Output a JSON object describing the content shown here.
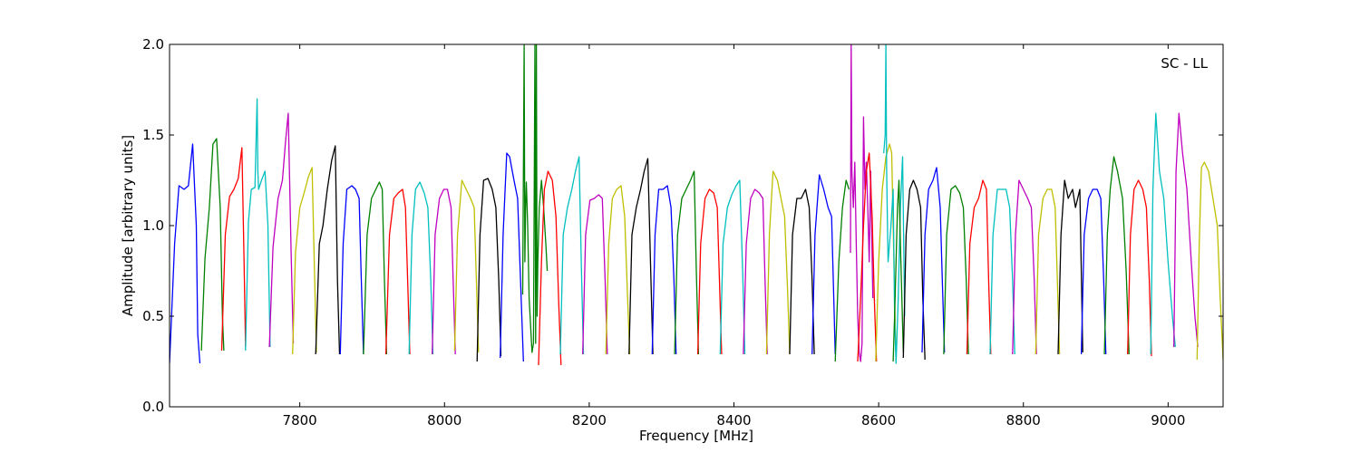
{
  "chart_data": {
    "type": "line",
    "title": "",
    "annotation": "SC - LL",
    "xlabel": "Frequency [MHz]",
    "ylabel": "Amplitude [arbitrary units]",
    "xlim": [
      7620,
      9076
    ],
    "ylim": [
      0.0,
      2.0
    ],
    "xticks": [
      7800,
      8000,
      8200,
      8400,
      8600,
      8800,
      9000
    ],
    "xtick_labels": [
      "7800",
      "8000",
      "8200",
      "8400",
      "8600",
      "8800",
      "9000"
    ],
    "yticks": [
      0.0,
      0.5,
      1.0,
      1.5,
      2.0
    ],
    "ytick_labels": [
      "0.0",
      "0.5",
      "1.0",
      "1.5",
      "2.0"
    ],
    "grid": false,
    "colors": [
      "#0000ff",
      "#008000",
      "#ff0000",
      "#00bfbf",
      "#bf00bf",
      "#bfbf00",
      "#000000"
    ],
    "series": [
      {
        "color": "#0000ff",
        "x": [
          7620,
          7627,
          7633,
          7640,
          7646,
          7652,
          7657,
          7659,
          7662
        ],
        "y": [
          0.24,
          0.9,
          1.22,
          1.2,
          1.22,
          1.45,
          1.0,
          0.4,
          0.24
        ]
      },
      {
        "color": "#008000",
        "x": [
          7664,
          7669,
          7675,
          7680,
          7685,
          7690,
          7693,
          7695
        ],
        "y": [
          0.31,
          0.82,
          1.1,
          1.45,
          1.48,
          1.1,
          0.5,
          0.31
        ]
      },
      {
        "color": "#ff0000",
        "x": [
          7692,
          7697,
          7703,
          7709,
          7715,
          7720,
          7723,
          7725
        ],
        "y": [
          0.31,
          0.95,
          1.16,
          1.2,
          1.26,
          1.43,
          0.8,
          0.33
        ]
      },
      {
        "color": "#00bfbf",
        "x": [
          7725,
          7729,
          7733,
          7738,
          7741,
          7742,
          7743,
          7747,
          7752,
          7756,
          7759
        ],
        "y": [
          0.31,
          1.02,
          1.2,
          1.21,
          1.7,
          1.3,
          1.2,
          1.25,
          1.3,
          1.0,
          0.33
        ]
      },
      {
        "color": "#bf00bf",
        "x": [
          7758,
          7763,
          7770,
          7776,
          7780,
          7784,
          7788,
          7791
        ],
        "y": [
          0.33,
          0.88,
          1.15,
          1.25,
          1.45,
          1.62,
          0.85,
          0.35
        ]
      },
      {
        "color": "#bfbf00",
        "x": [
          7790,
          7794,
          7800,
          7806,
          7812,
          7817,
          7820,
          7823
        ],
        "y": [
          0.29,
          0.85,
          1.1,
          1.18,
          1.27,
          1.32,
          0.8,
          0.3
        ]
      },
      {
        "color": "#000000",
        "x": [
          7822,
          7827,
          7832,
          7838,
          7844,
          7849,
          7852,
          7855
        ],
        "y": [
          0.29,
          0.9,
          1.0,
          1.2,
          1.36,
          1.44,
          0.7,
          0.29
        ]
      },
      {
        "color": "#0000ff",
        "x": [
          7856,
          7860,
          7865,
          7872,
          7877,
          7882,
          7885,
          7888
        ],
        "y": [
          0.29,
          0.9,
          1.2,
          1.22,
          1.2,
          1.15,
          0.7,
          0.29
        ]
      },
      {
        "color": "#008000",
        "x": [
          7888,
          7893,
          7899,
          7905,
          7910,
          7914,
          7917,
          7920
        ],
        "y": [
          0.29,
          0.95,
          1.15,
          1.2,
          1.24,
          1.2,
          0.7,
          0.29
        ]
      },
      {
        "color": "#ff0000",
        "x": [
          7919,
          7924,
          7930,
          7936,
          7942,
          7946,
          7949,
          7952
        ],
        "y": [
          0.29,
          0.95,
          1.15,
          1.18,
          1.2,
          1.1,
          0.7,
          0.29
        ]
      },
      {
        "color": "#00bfbf",
        "x": [
          7951,
          7955,
          7960,
          7966,
          7972,
          7977,
          7981,
          7984
        ],
        "y": [
          0.29,
          0.95,
          1.2,
          1.24,
          1.18,
          1.1,
          0.7,
          0.29
        ]
      },
      {
        "color": "#bf00bf",
        "x": [
          7983,
          7987,
          7993,
          7999,
          8004,
          8009,
          8012,
          8015
        ],
        "y": [
          0.29,
          0.95,
          1.15,
          1.2,
          1.2,
          1.1,
          0.7,
          0.29
        ]
      },
      {
        "color": "#bfbf00",
        "x": [
          8014,
          8018,
          8024,
          8030,
          8036,
          8041,
          8044,
          8047
        ],
        "y": [
          0.31,
          0.95,
          1.25,
          1.2,
          1.15,
          1.1,
          0.7,
          0.3
        ]
      },
      {
        "color": "#000000",
        "x": [
          8045,
          8049,
          8054,
          8060,
          8066,
          8071,
          8075,
          8078
        ],
        "y": [
          0.25,
          0.95,
          1.25,
          1.26,
          1.2,
          1.1,
          0.7,
          0.28
        ]
      },
      {
        "color": "#0000ff",
        "x": [
          8077,
          8081,
          8086,
          8090,
          8096,
          8101,
          8105,
          8109
        ],
        "y": [
          0.27,
          0.95,
          1.4,
          1.38,
          1.25,
          1.15,
          0.7,
          0.25
        ]
      },
      {
        "color": "#008000",
        "x": [
          8108,
          8110,
          8111,
          8112,
          8113,
          8115,
          8117,
          8119,
          8121,
          8123,
          8125,
          8126,
          8127,
          8128,
          8129,
          8131,
          8134,
          8137,
          8140,
          8142
        ],
        "y": [
          0.62,
          2.0,
          0.8,
          1.1,
          1.24,
          1.0,
          0.6,
          0.45,
          0.3,
          0.35,
          2.0,
          0.35,
          2.0,
          0.5,
          0.8,
          1.1,
          1.25,
          1.1,
          0.9,
          0.75
        ]
      },
      {
        "color": "#ff0000",
        "x": [
          8130,
          8134,
          8138,
          8143,
          8149,
          8154,
          8158,
          8161
        ],
        "y": [
          0.23,
          0.8,
          1.2,
          1.3,
          1.25,
          1.05,
          0.55,
          0.23
        ]
      },
      {
        "color": "#00bfbf",
        "x": [
          8160,
          8164,
          8170,
          8176,
          8181,
          8186,
          8189,
          8192
        ],
        "y": [
          0.29,
          0.95,
          1.1,
          1.2,
          1.3,
          1.38,
          0.8,
          0.29
        ]
      },
      {
        "color": "#bf00bf",
        "x": [
          8191,
          8195,
          8201,
          8207,
          8213,
          8218,
          8222,
          8225
        ],
        "y": [
          0.29,
          0.95,
          1.14,
          1.15,
          1.17,
          1.15,
          0.7,
          0.29
        ]
      },
      {
        "color": "#bfbf00",
        "x": [
          8223,
          8227,
          8232,
          8238,
          8244,
          8249,
          8253,
          8256
        ],
        "y": [
          0.29,
          0.9,
          1.15,
          1.2,
          1.22,
          1.05,
          0.6,
          0.29
        ]
      },
      {
        "color": "#000000",
        "x": [
          8255,
          8259,
          8265,
          8271,
          8276,
          8281,
          8285,
          8288
        ],
        "y": [
          0.29,
          0.95,
          1.1,
          1.2,
          1.3,
          1.37,
          0.75,
          0.29
        ]
      },
      {
        "color": "#0000ff",
        "x": [
          8287,
          8291,
          8296,
          8302,
          8308,
          8313,
          8317,
          8320
        ],
        "y": [
          0.29,
          0.95,
          1.2,
          1.2,
          1.22,
          1.1,
          0.7,
          0.29
        ]
      },
      {
        "color": "#008000",
        "x": [
          8318,
          8322,
          8328,
          8334,
          8340,
          8345,
          8348,
          8351
        ],
        "y": [
          0.29,
          0.95,
          1.15,
          1.2,
          1.25,
          1.3,
          0.75,
          0.29
        ]
      },
      {
        "color": "#ff0000",
        "x": [
          8350,
          8354,
          8360,
          8366,
          8372,
          8377,
          8380,
          8383
        ],
        "y": [
          0.29,
          0.9,
          1.15,
          1.2,
          1.18,
          1.1,
          0.7,
          0.29
        ]
      },
      {
        "color": "#00bfbf",
        "x": [
          8381,
          8385,
          8391,
          8397,
          8403,
          8408,
          8412,
          8415
        ],
        "y": [
          0.29,
          0.9,
          1.1,
          1.17,
          1.22,
          1.25,
          0.75,
          0.29
        ]
      },
      {
        "color": "#bf00bf",
        "x": [
          8413,
          8417,
          8423,
          8429,
          8435,
          8440,
          8443,
          8446
        ],
        "y": [
          0.29,
          0.9,
          1.15,
          1.2,
          1.18,
          1.15,
          0.7,
          0.29
        ]
      },
      {
        "color": "#bfbf00",
        "x": [
          8445,
          8449,
          8454,
          8460,
          8465,
          8470,
          8474,
          8477
        ],
        "y": [
          0.29,
          0.95,
          1.3,
          1.25,
          1.15,
          1.05,
          0.65,
          0.29
        ]
      },
      {
        "color": "#000000",
        "x": [
          8477,
          8481,
          8487,
          8493,
          8499,
          8504,
          8508,
          8511
        ],
        "y": [
          0.29,
          0.95,
          1.15,
          1.15,
          1.2,
          1.1,
          0.7,
          0.29
        ]
      },
      {
        "color": "#0000ff",
        "x": [
          8508,
          8512,
          8518,
          8524,
          8530,
          8535,
          8538,
          8540
        ],
        "y": [
          0.29,
          0.95,
          1.28,
          1.2,
          1.1,
          1.05,
          0.6,
          0.29
        ]
      },
      {
        "color": "#008000",
        "x": [
          8540,
          8545,
          8550,
          8555,
          8559
        ],
        "y": [
          0.25,
          0.8,
          1.1,
          1.25,
          1.2
        ]
      },
      {
        "color": "#bf00bf",
        "x": [
          8561,
          8562,
          8563,
          8565,
          8567,
          8569,
          8571,
          8573,
          8575,
          8577,
          8579,
          8581,
          8583,
          8585,
          8587,
          8589,
          8592
        ],
        "y": [
          0.85,
          2.0,
          1.3,
          1.1,
          1.35,
          0.9,
          0.5,
          0.3,
          0.25,
          0.35,
          1.6,
          1.2,
          1.35,
          1.1,
          0.8,
          1.3,
          0.6
        ]
      },
      {
        "color": "#ff0000",
        "x": [
          8571,
          8575,
          8579,
          8583,
          8587,
          8591,
          8594,
          8597
        ],
        "y": [
          0.25,
          0.6,
          1.0,
          1.3,
          1.4,
          1.05,
          0.6,
          0.25
        ]
      },
      {
        "color": "#bfbf00",
        "x": [
          8596,
          8600,
          8605,
          8610,
          8615,
          8618,
          8621,
          8624
        ],
        "y": [
          0.25,
          0.8,
          1.2,
          1.38,
          1.45,
          1.4,
          0.8,
          0.25
        ]
      },
      {
        "color": "#00bfbf",
        "x": [
          8607,
          8609,
          8610,
          8611,
          8613,
          8617,
          8620,
          8622,
          8624,
          8627,
          8630,
          8633,
          8636
        ],
        "y": [
          1.4,
          1.5,
          2.0,
          1.3,
          0.8,
          1.0,
          1.2,
          0.5,
          0.24,
          0.6,
          1.1,
          1.38,
          0.5
        ]
      },
      {
        "color": "#008000",
        "x": [
          8620,
          8622,
          8624,
          8626,
          8628,
          8630,
          8632,
          8634
        ],
        "y": [
          0.25,
          0.5,
          0.8,
          1.1,
          1.25,
          0.9,
          0.6,
          0.3
        ]
      },
      {
        "color": "#000000",
        "x": [
          8634,
          8638,
          8643,
          8648,
          8653,
          8658,
          8661,
          8664
        ],
        "y": [
          0.27,
          0.95,
          1.2,
          1.25,
          1.2,
          1.1,
          0.6,
          0.26
        ]
      },
      {
        "color": "#0000ff",
        "x": [
          8660,
          8664,
          8669,
          8675,
          8680,
          8685,
          8688,
          8691
        ],
        "y": [
          0.3,
          0.95,
          1.2,
          1.25,
          1.32,
          1.1,
          0.7,
          0.3
        ]
      },
      {
        "color": "#008000",
        "x": [
          8690,
          8694,
          8700,
          8706,
          8712,
          8717,
          8721,
          8724
        ],
        "y": [
          0.29,
          0.95,
          1.2,
          1.22,
          1.18,
          1.1,
          0.7,
          0.29
        ]
      },
      {
        "color": "#ff0000",
        "x": [
          8722,
          8726,
          8732,
          8738,
          8744,
          8749,
          8752,
          8755
        ],
        "y": [
          0.29,
          0.9,
          1.1,
          1.15,
          1.25,
          1.2,
          0.7,
          0.29
        ]
      },
      {
        "color": "#00bfbf",
        "x": [
          8754,
          8758,
          8764,
          8770,
          8776,
          8781,
          8785,
          8788
        ],
        "y": [
          0.29,
          0.95,
          1.2,
          1.2,
          1.2,
          1.1,
          0.7,
          0.29
        ]
      },
      {
        "color": "#bf00bf",
        "x": [
          8785,
          8789,
          8794,
          8800,
          8806,
          8811,
          8815,
          8818
        ],
        "y": [
          0.29,
          0.95,
          1.25,
          1.2,
          1.15,
          1.1,
          0.7,
          0.29
        ]
      },
      {
        "color": "#bfbf00",
        "x": [
          8817,
          8821,
          8827,
          8833,
          8839,
          8844,
          8847,
          8850
        ],
        "y": [
          0.29,
          0.95,
          1.15,
          1.2,
          1.2,
          1.1,
          0.7,
          0.29
        ]
      },
      {
        "color": "#000000",
        "x": [
          8848,
          8852,
          8857,
          8862,
          8868,
          8872,
          8878,
          8882
        ],
        "y": [
          0.29,
          0.95,
          1.25,
          1.15,
          1.2,
          1.1,
          1.2,
          0.3
        ]
      },
      {
        "color": "#0000ff",
        "x": [
          8880,
          8884,
          8890,
          8896,
          8902,
          8907,
          8911,
          8914
        ],
        "y": [
          0.29,
          0.95,
          1.15,
          1.2,
          1.2,
          1.15,
          0.7,
          0.29
        ]
      },
      {
        "color": "#008000",
        "x": [
          8912,
          8916,
          8920,
          8925,
          8930,
          8937,
          8942,
          8946
        ],
        "y": [
          0.29,
          0.95,
          1.2,
          1.38,
          1.3,
          1.15,
          0.75,
          0.29
        ]
      },
      {
        "color": "#ff0000",
        "x": [
          8944,
          8948,
          8953,
          8959,
          8965,
          8970,
          8974,
          8977
        ],
        "y": [
          0.29,
          0.95,
          1.2,
          1.25,
          1.2,
          1.1,
          0.7,
          0.28
        ]
      },
      {
        "color": "#00bfbf",
        "x": [
          8976,
          8979,
          8983,
          8988,
          8994,
          9000,
          9006,
          9010
        ],
        "y": [
          0.29,
          1.2,
          1.62,
          1.3,
          1.15,
          0.8,
          0.5,
          0.33
        ]
      },
      {
        "color": "#bf00bf",
        "x": [
          9008,
          9011,
          9015,
          9020,
          9026,
          9032,
          9037,
          9041
        ],
        "y": [
          0.33,
          1.3,
          1.62,
          1.4,
          1.2,
          0.8,
          0.5,
          0.33
        ]
      },
      {
        "color": "#bfbf00",
        "x": [
          9040,
          9043,
          9046,
          9050,
          9056,
          9062,
          9068,
          9072,
          9076
        ],
        "y": [
          0.26,
          0.9,
          1.32,
          1.35,
          1.3,
          1.15,
          1.0,
          0.6,
          0.26
        ]
      }
    ]
  }
}
